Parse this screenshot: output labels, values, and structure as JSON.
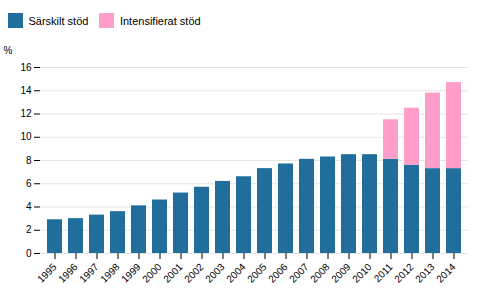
{
  "chart_data": {
    "type": "bar",
    "stacked": true,
    "ylabel": "%",
    "categories": [
      "1995",
      "1996",
      "1997",
      "1998",
      "1999",
      "2000",
      "2001",
      "2002",
      "2003",
      "2004",
      "2005",
      "2006",
      "2007",
      "2008",
      "2009",
      "2010",
      "2011",
      "2012",
      "2013",
      "2014"
    ],
    "series": [
      {
        "name": "Särskilt stöd",
        "color": "#1F6E9C",
        "values": [
          2.9,
          3.0,
          3.3,
          3.6,
          4.1,
          4.6,
          5.2,
          5.7,
          6.2,
          6.6,
          7.3,
          7.7,
          8.1,
          8.3,
          8.5,
          8.5,
          8.1,
          7.6,
          7.3,
          7.3
        ]
      },
      {
        "name": "Intensifierat stöd",
        "color": "#FF9EC8",
        "values": [
          0,
          0,
          0,
          0,
          0,
          0,
          0,
          0,
          0,
          0,
          0,
          0,
          0,
          0,
          0,
          0,
          3.4,
          4.9,
          6.5,
          7.4
        ]
      }
    ],
    "ylim": [
      0,
      16
    ],
    "yticks": [
      0,
      2,
      4,
      6,
      8,
      10,
      12,
      14,
      16
    ],
    "grid": true,
    "legend": "upper left"
  }
}
